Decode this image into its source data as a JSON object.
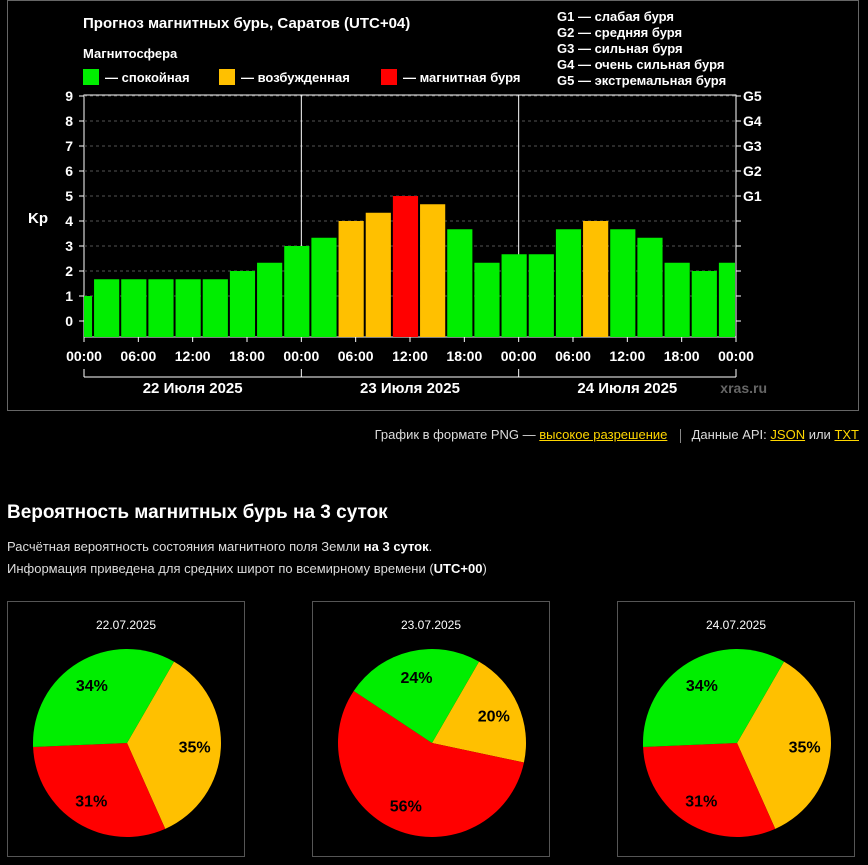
{
  "chart": {
    "title": "Прогноз магнитных бурь, Саратов (UTC+04)",
    "legend_heading": "Магнитосфера",
    "legend": [
      {
        "label": "— спокойная",
        "color": "#00ee00"
      },
      {
        "label": "— возбужденная",
        "color": "#ffc000"
      },
      {
        "label": "— магнитная буря",
        "color": "#ff0000"
      }
    ],
    "g_scale": [
      "G1 — слабая буря",
      "G2 — средняя буря",
      "G3 — сильная буря",
      "G4 — очень сильная буря",
      "G5 — экстремальная буря"
    ],
    "watermark": "xras.ru"
  },
  "chart_data": {
    "type": "bar",
    "ylabel": "Kp",
    "ylim": [
      0,
      9
    ],
    "yticks": [
      "0",
      "1",
      "2",
      "3",
      "4",
      "5",
      "6",
      "7",
      "8",
      "9"
    ],
    "right_ticks": [
      {
        "label": "G1",
        "value": 5
      },
      {
        "label": "G2",
        "value": 6
      },
      {
        "label": "G3",
        "value": 7
      },
      {
        "label": "G4",
        "value": 8
      },
      {
        "label": "G5",
        "value": 9
      }
    ],
    "xticks": [
      "00:00",
      "06:00",
      "12:00",
      "18:00",
      "00:00",
      "06:00",
      "12:00",
      "18:00",
      "00:00",
      "06:00",
      "12:00",
      "18:00",
      "00:00"
    ],
    "days": [
      "22 Июля 2025",
      "23 Июля 2025",
      "24 Июля 2025"
    ],
    "values": [
      1.0,
      1.67,
      1.67,
      1.67,
      1.67,
      1.67,
      2.0,
      2.33,
      3.0,
      3.33,
      4.0,
      4.33,
      5.0,
      4.67,
      3.67,
      2.33,
      2.67,
      2.67,
      3.67,
      4.0,
      3.67,
      3.33,
      2.33,
      2.0,
      2.33,
      2.67
    ],
    "grid": true
  },
  "links": {
    "png_text": "График в формате PNG —",
    "png_link": "высокое разрешение",
    "api_text": "Данные API:",
    "json_link": "JSON",
    "or_text": "или",
    "txt_link": "TXT"
  },
  "probability": {
    "title": "Вероятность магнитных бурь на 3 суток",
    "desc1_pre": "Расчётная вероятность состояния магнитного поля Земли ",
    "desc1_bold": "на 3 суток",
    "desc1_post": ".",
    "desc2_pre": "Информация приведена для средних широт по всемирному времени (",
    "desc2_bold": "UTC+00",
    "desc2_post": ")",
    "days": [
      {
        "date": "22.07.2025",
        "quiet": 34,
        "active": 35,
        "storm": 31
      },
      {
        "date": "23.07.2025",
        "quiet": 24,
        "active": 20,
        "storm": 56
      },
      {
        "date": "24.07.2025",
        "quiet": 34,
        "active": 35,
        "storm": 31
      }
    ]
  },
  "colors": {
    "quiet": "#00ee00",
    "active": "#ffc000",
    "storm": "#ff0000"
  }
}
